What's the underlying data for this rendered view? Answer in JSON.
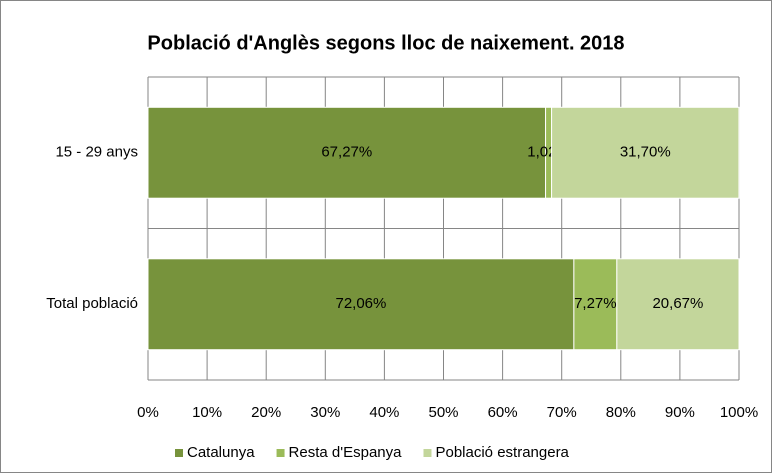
{
  "chart_data": {
    "type": "stacked_barh",
    "title": "Població d'Anglès segons lloc de naixement. 2018",
    "categories": [
      "15 - 29 anys",
      "Total població"
    ],
    "series": [
      {
        "name": "Catalunya",
        "color": "#77933c",
        "values": [
          67.27,
          72.06
        ],
        "value_labels": [
          "67,27%",
          "72,06%"
        ]
      },
      {
        "name": "Resta d'Espanya",
        "color": "#9bbb59",
        "values": [
          1.02,
          7.27
        ],
        "value_labels": [
          "1,02%",
          "7,27%"
        ]
      },
      {
        "name": "Població estrangera",
        "color": "#c3d69b",
        "values": [
          31.7,
          20.67
        ],
        "value_labels": [
          "31,70%",
          "20,67%"
        ]
      }
    ],
    "xlim": [
      0,
      100
    ],
    "xticks": [
      {
        "value": 0,
        "label": "0%"
      },
      {
        "value": 10,
        "label": "10%"
      },
      {
        "value": 20,
        "label": "20%"
      },
      {
        "value": 30,
        "label": "30%"
      },
      {
        "value": 40,
        "label": "40%"
      },
      {
        "value": 50,
        "label": "50%"
      },
      {
        "value": 60,
        "label": "60%"
      },
      {
        "value": 70,
        "label": "70%"
      },
      {
        "value": 80,
        "label": "80%"
      },
      {
        "value": 90,
        "label": "90%"
      },
      {
        "value": 100,
        "label": "100%"
      }
    ],
    "grid": true,
    "legend": "bottom"
  }
}
